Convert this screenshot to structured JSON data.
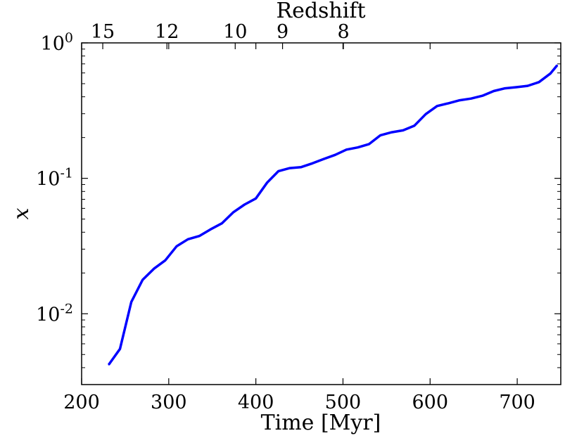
{
  "chart_data": {
    "type": "line",
    "title": "",
    "xlabel": "Time [Myr]",
    "ylabel": "x",
    "top_axis_label": "Redshift",
    "xlim": [
      200,
      750
    ],
    "ylim": [
      0.003,
      1.0
    ],
    "y_scale": "log",
    "grid": false,
    "x_ticks": [
      "200",
      "300",
      "400",
      "500",
      "600",
      "700"
    ],
    "y_ticks": [
      {
        "base": "10",
        "exp": "0"
      },
      {
        "base": "10",
        "exp": "-1"
      },
      {
        "base": "10",
        "exp": "-2"
      }
    ],
    "top_ticks": [
      "15",
      "12",
      "10",
      "9",
      "8"
    ],
    "series": [
      {
        "color": "#0000ff",
        "x": [
          231,
          244,
          257,
          270,
          283,
          296,
          309,
          322,
          335,
          348,
          361,
          374,
          387,
          400,
          413,
          426,
          439,
          452,
          465,
          478,
          491,
          504,
          517,
          530,
          543,
          556,
          569,
          582,
          595,
          608,
          621,
          634,
          647,
          660,
          673,
          686,
          699,
          712,
          725,
          738,
          746
        ],
        "y": [
          0.0042,
          0.0055,
          0.0122,
          0.0178,
          0.0215,
          0.0248,
          0.0315,
          0.0355,
          0.0375,
          0.042,
          0.0465,
          0.056,
          0.064,
          0.071,
          0.093,
          0.113,
          0.119,
          0.121,
          0.129,
          0.139,
          0.149,
          0.163,
          0.169,
          0.179,
          0.208,
          0.219,
          0.226,
          0.245,
          0.298,
          0.342,
          0.358,
          0.377,
          0.388,
          0.407,
          0.441,
          0.462,
          0.471,
          0.482,
          0.513,
          0.593,
          0.685
        ]
      }
    ]
  }
}
